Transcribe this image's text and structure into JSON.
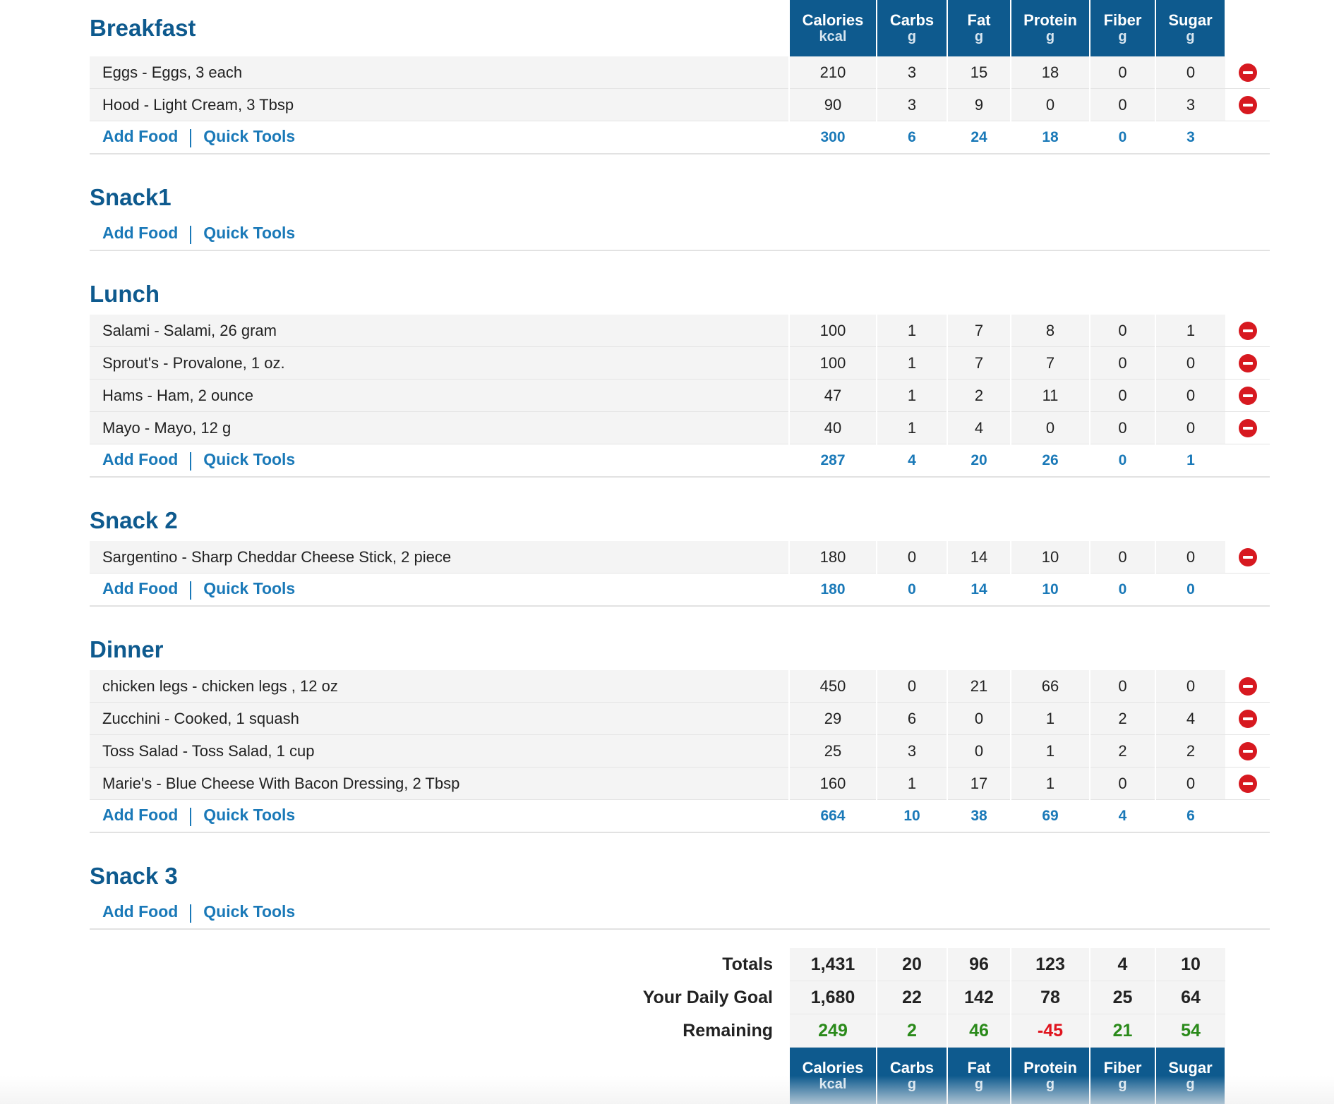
{
  "columns": [
    {
      "label": "Calories",
      "unit": "kcal"
    },
    {
      "label": "Carbs",
      "unit": "g"
    },
    {
      "label": "Fat",
      "unit": "g"
    },
    {
      "label": "Protein",
      "unit": "g"
    },
    {
      "label": "Fiber",
      "unit": "g"
    },
    {
      "label": "Sugar",
      "unit": "g"
    }
  ],
  "actions": {
    "add_food": "Add Food",
    "quick_tools": "Quick Tools"
  },
  "meals": [
    {
      "title": "Breakfast",
      "foods": [
        {
          "name": "Eggs - Eggs, 3 each",
          "values": [
            "210",
            "3",
            "15",
            "18",
            "0",
            "0"
          ]
        },
        {
          "name": "Hood - Light Cream, 3 Tbsp",
          "values": [
            "90",
            "3",
            "9",
            "0",
            "0",
            "3"
          ]
        }
      ],
      "totals": [
        "300",
        "6",
        "24",
        "18",
        "0",
        "3"
      ]
    },
    {
      "title": "Snack1",
      "foods": [],
      "totals": []
    },
    {
      "title": "Lunch",
      "foods": [
        {
          "name": "Salami - Salami, 26 gram",
          "values": [
            "100",
            "1",
            "7",
            "8",
            "0",
            "1"
          ]
        },
        {
          "name": "Sprout's - Provalone, 1 oz.",
          "values": [
            "100",
            "1",
            "7",
            "7",
            "0",
            "0"
          ]
        },
        {
          "name": "Hams - Ham, 2 ounce",
          "values": [
            "47",
            "1",
            "2",
            "11",
            "0",
            "0"
          ]
        },
        {
          "name": "Mayo - Mayo, 12 g",
          "values": [
            "40",
            "1",
            "4",
            "0",
            "0",
            "0"
          ]
        }
      ],
      "totals": [
        "287",
        "4",
        "20",
        "26",
        "0",
        "1"
      ]
    },
    {
      "title": "Snack 2",
      "foods": [
        {
          "name": "Sargentino - Sharp Cheddar Cheese Stick, 2 piece",
          "values": [
            "180",
            "0",
            "14",
            "10",
            "0",
            "0"
          ]
        }
      ],
      "totals": [
        "180",
        "0",
        "14",
        "10",
        "0",
        "0"
      ]
    },
    {
      "title": "Dinner",
      "foods": [
        {
          "name": "chicken legs - chicken legs , 12 oz",
          "values": [
            "450",
            "0",
            "21",
            "66",
            "0",
            "0"
          ]
        },
        {
          "name": "Zucchini - Cooked, 1 squash",
          "values": [
            "29",
            "6",
            "0",
            "1",
            "2",
            "4"
          ]
        },
        {
          "name": "Toss Salad - Toss Salad, 1 cup",
          "values": [
            "25",
            "3",
            "0",
            "1",
            "2",
            "2"
          ]
        },
        {
          "name": "Marie's - Blue Cheese With Bacon Dressing, 2 Tbsp",
          "values": [
            "160",
            "1",
            "17",
            "1",
            "0",
            "0"
          ]
        }
      ],
      "totals": [
        "664",
        "10",
        "38",
        "69",
        "4",
        "6"
      ]
    },
    {
      "title": "Snack 3",
      "foods": [],
      "totals": []
    }
  ],
  "summary": {
    "totals": {
      "label": "Totals",
      "values": [
        "1,431",
        "20",
        "96",
        "123",
        "4",
        "10"
      ]
    },
    "goal": {
      "label": "Your Daily Goal",
      "values": [
        "1,680",
        "22",
        "142",
        "78",
        "25",
        "64"
      ]
    },
    "remaining": {
      "label": "Remaining",
      "values": [
        "249",
        "2",
        "46",
        "-45",
        "21",
        "54"
      ],
      "status": [
        "pos",
        "pos",
        "pos",
        "neg",
        "pos",
        "pos"
      ]
    }
  },
  "colors": {
    "header_bg": "#0e5a8e",
    "link": "#1a79b8",
    "positive": "#2a8a1a",
    "negative": "#e0141e",
    "delete": "#d71920"
  },
  "icons": {
    "delete": "remove-circle-icon"
  }
}
